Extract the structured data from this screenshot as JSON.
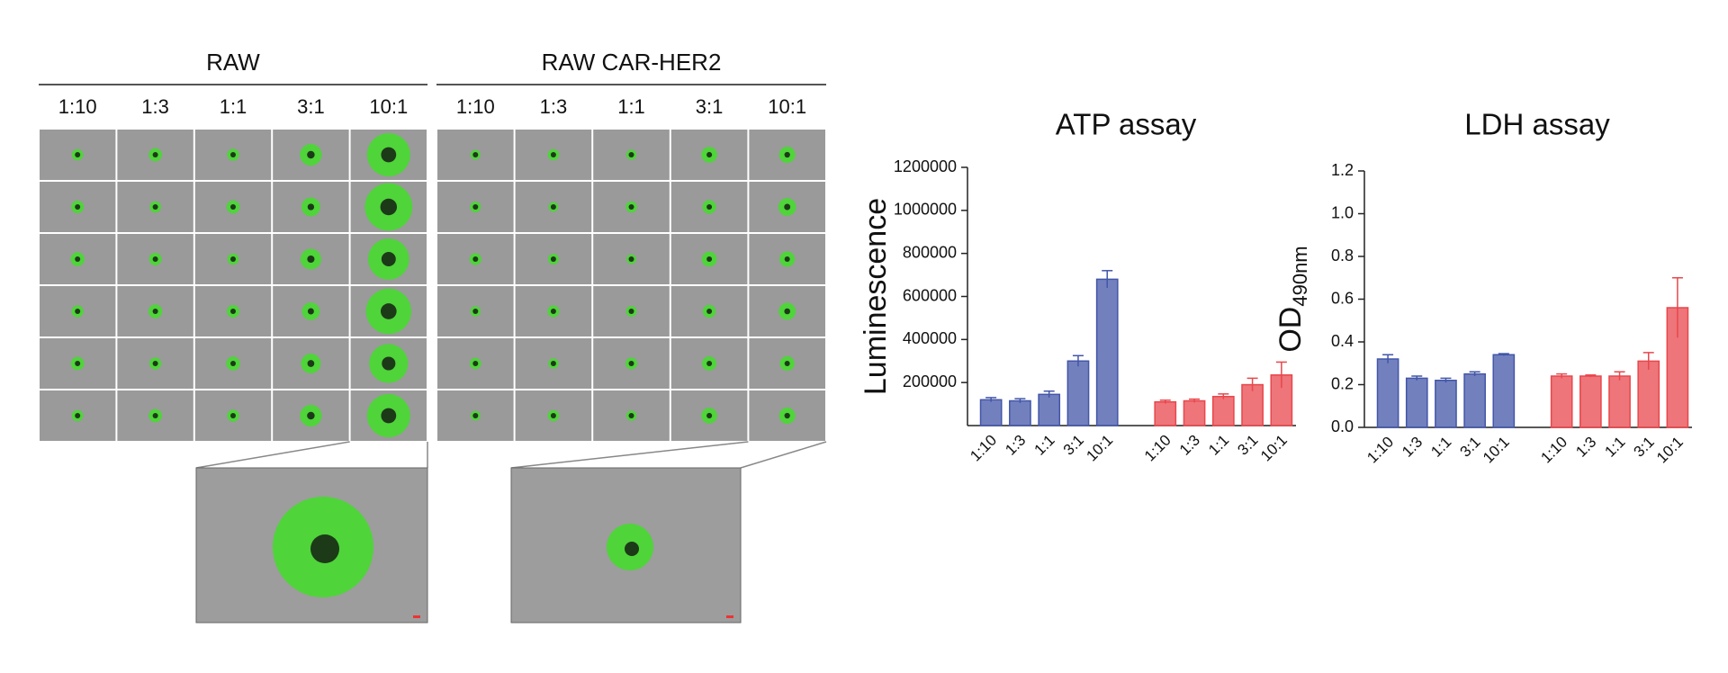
{
  "panels": [
    {
      "title": "RAW",
      "ratios": [
        "1:10",
        "1:3",
        "1:1",
        "3:1",
        "10:1"
      ]
    },
    {
      "title": "RAW CAR-HER2",
      "ratios": [
        "1:10",
        "1:3",
        "1:1",
        "3:1",
        "10:1"
      ]
    }
  ],
  "chart_data": [
    {
      "type": "bar",
      "title": "ATP assay",
      "ylabel": "Luminescence",
      "ylim": [
        0,
        1200000
      ],
      "yticks": [
        200000,
        400000,
        600000,
        800000,
        1000000,
        1200000
      ],
      "groups": [
        {
          "color": "#4356a8",
          "categories": [
            "1:10",
            "1:3",
            "1:1",
            "3:1",
            "10:1"
          ],
          "values": [
            120000,
            115000,
            145000,
            300000,
            680000
          ],
          "errors": [
            10000,
            10000,
            15000,
            25000,
            40000
          ]
        },
        {
          "color": "#e8474c",
          "categories": [
            "1:10",
            "1:3",
            "1:1",
            "3:1",
            "10:1"
          ],
          "values": [
            110000,
            115000,
            135000,
            190000,
            235000
          ],
          "errors": [
            8000,
            8000,
            12000,
            30000,
            60000
          ]
        }
      ]
    },
    {
      "type": "bar",
      "title": "LDH assay",
      "ylabel": "OD",
      "ylabel_sub": "490nm",
      "ylim": [
        0,
        1.2
      ],
      "yticks": [
        {
          "value": 0,
          "label": "0.0"
        },
        0.2,
        0.4,
        0.6,
        0.8,
        {
          "value": 1,
          "label": "1.0"
        },
        1.2
      ],
      "groups": [
        {
          "color": "#4356a8",
          "categories": [
            "1:10",
            "1:3",
            "1:1",
            "3:1",
            "10:1"
          ],
          "values": [
            0.32,
            0.23,
            0.22,
            0.25,
            0.34
          ],
          "errors": [
            0.02,
            0.01,
            0.01,
            0.01,
            0.005
          ]
        },
        {
          "color": "#e8474c",
          "categories": [
            "1:10",
            "1:3",
            "1:1",
            "3:1",
            "10:1"
          ],
          "values": [
            0.24,
            0.24,
            0.24,
            0.31,
            0.56
          ],
          "errors": [
            0.01,
            0.005,
            0.02,
            0.04,
            0.14
          ]
        }
      ]
    }
  ]
}
